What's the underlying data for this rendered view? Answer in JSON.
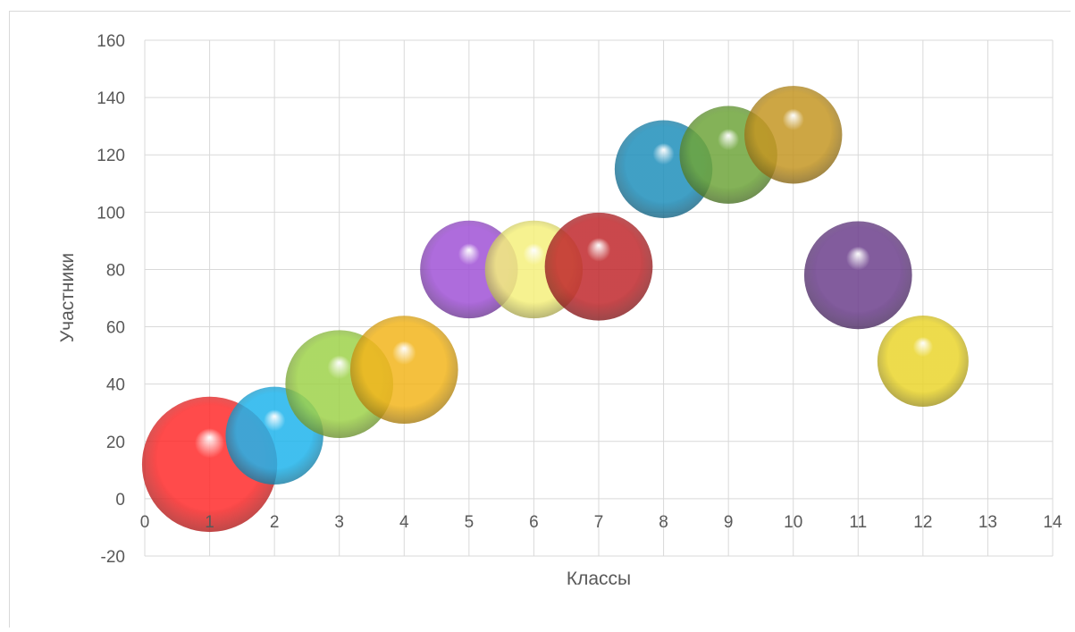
{
  "chart_data": {
    "type": "bubble",
    "title": "",
    "xlabel": "Классы",
    "ylabel": "Участники",
    "xlim": [
      0,
      14
    ],
    "ylim": [
      -20,
      160
    ],
    "x_ticks": [
      "0",
      "1",
      "2",
      "3",
      "4",
      "5",
      "6",
      "7",
      "8",
      "9",
      "10",
      "11",
      "12",
      "13",
      "14"
    ],
    "y_ticks": [
      "160",
      "140",
      "120",
      "100",
      "80",
      "60",
      "40",
      "20",
      "0",
      "-20"
    ],
    "grid": true,
    "legend": "none",
    "points": [
      {
        "x": 1,
        "y": 12,
        "size": 2.2,
        "color": "#ff2b2b"
      },
      {
        "x": 2,
        "y": 22,
        "size": 1.15,
        "color": "#1fb4ec"
      },
      {
        "x": 3,
        "y": 40,
        "size": 1.4,
        "color": "#9ed24a"
      },
      {
        "x": 4,
        "y": 45,
        "size": 1.4,
        "color": "#f2b51c"
      },
      {
        "x": 5,
        "y": 80,
        "size": 1.15,
        "color": "#a052d6"
      },
      {
        "x": 6,
        "y": 80,
        "size": 1.15,
        "color": "#f5f07c"
      },
      {
        "x": 7,
        "y": 81,
        "size": 1.4,
        "color": "#c0282c"
      },
      {
        "x": 8,
        "y": 115,
        "size": 1.15,
        "color": "#1f8fbb"
      },
      {
        "x": 9,
        "y": 120,
        "size": 1.15,
        "color": "#6ea53a"
      },
      {
        "x": 10,
        "y": 127,
        "size": 1.15,
        "color": "#c49623"
      },
      {
        "x": 11,
        "y": 78,
        "size": 1.4,
        "color": "#6c3f8c"
      },
      {
        "x": 12,
        "y": 48,
        "size": 1.0,
        "color": "#ead52c"
      }
    ]
  },
  "colors": {
    "grid": "#d9d9d9",
    "text": "#595959"
  }
}
